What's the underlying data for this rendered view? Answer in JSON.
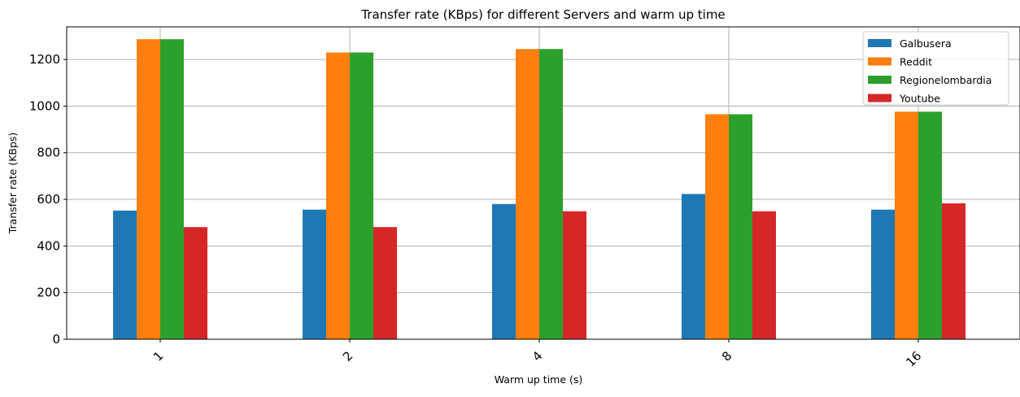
{
  "chart_data": {
    "type": "bar",
    "title": "Transfer rate (KBps) for different Servers and warm up time",
    "xlabel": "Warm up time (s)",
    "ylabel": "Transfer rate (KBps)",
    "categories": [
      "1",
      "2",
      "4",
      "8",
      "16"
    ],
    "ylim": [
      0,
      1340
    ],
    "yticks": [
      0,
      200,
      400,
      600,
      800,
      1000,
      1200
    ],
    "grid": true,
    "legend_position": "top-right",
    "series": [
      {
        "name": "Galbusera",
        "color": "#1f77b4",
        "values": [
          552,
          556,
          580,
          623,
          556
        ]
      },
      {
        "name": "Reddit",
        "color": "#ff7f0e",
        "values": [
          1287,
          1230,
          1245,
          965,
          976
        ]
      },
      {
        "name": "Regionelombardia",
        "color": "#2ca02c",
        "values": [
          1287,
          1230,
          1245,
          965,
          976
        ]
      },
      {
        "name": "Youtube",
        "color": "#d62728",
        "values": [
          481,
          481,
          549,
          549,
          583
        ]
      }
    ]
  }
}
